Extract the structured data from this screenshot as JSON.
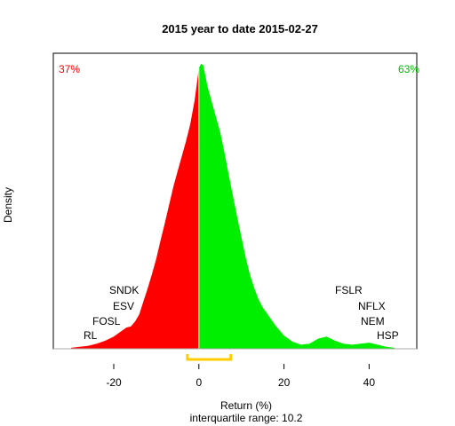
{
  "chart_data": {
    "type": "area",
    "title": "2015  year to date 2015-02-27",
    "xlabel": "Return (%)",
    "ylabel": "Density",
    "subtitle": "interquartile range: 10.2",
    "xlim": [
      -34.2,
      51.2
    ],
    "xticks": [
      -20,
      0,
      20,
      40
    ],
    "x_ticks_labels": [
      "-20",
      "0",
      "20",
      "40"
    ],
    "grid": false,
    "split_at": 0,
    "left_share": "37%",
    "right_share": "63%",
    "left_color": "#FF0000",
    "right_color": "#00EE00",
    "iqr_color": "#FFCC00",
    "iqr_range": [
      -2.7,
      7.5
    ],
    "density": {
      "x": [
        -30,
        -28,
        -26,
        -24,
        -22,
        -20,
        -18,
        -17,
        -16,
        -15,
        -14,
        -13,
        -12,
        -11,
        -10,
        -9,
        -8,
        -7,
        -6,
        -5,
        -4,
        -3,
        -2,
        -1,
        0,
        0.5,
        1,
        1.5,
        2,
        3,
        4,
        5,
        6,
        7,
        8,
        9,
        10,
        11,
        12,
        13,
        14,
        15,
        16,
        17,
        18,
        19,
        20,
        22,
        24,
        26,
        28,
        30,
        32,
        34,
        36,
        38,
        40,
        42,
        44,
        46
      ],
      "y": [
        0.001,
        0.002,
        0.003,
        0.005,
        0.008,
        0.012,
        0.018,
        0.021,
        0.022,
        0.027,
        0.034,
        0.047,
        0.06,
        0.074,
        0.089,
        0.107,
        0.124,
        0.142,
        0.16,
        0.175,
        0.19,
        0.205,
        0.222,
        0.245,
        0.277,
        0.281,
        0.28,
        0.27,
        0.259,
        0.244,
        0.229,
        0.214,
        0.194,
        0.172,
        0.151,
        0.13,
        0.11,
        0.09,
        0.073,
        0.06,
        0.049,
        0.041,
        0.035,
        0.029,
        0.023,
        0.018,
        0.013,
        0.007,
        0.004,
        0.005,
        0.01,
        0.012,
        0.008,
        0.005,
        0.004,
        0.005,
        0.006,
        0.004,
        0.002,
        0.001
      ]
    },
    "left_labels": [
      "SNDK",
      "ESV",
      "FOSL",
      "RL"
    ],
    "right_labels": [
      "FSLR",
      "NFLX",
      "NEM",
      "HSP"
    ]
  }
}
